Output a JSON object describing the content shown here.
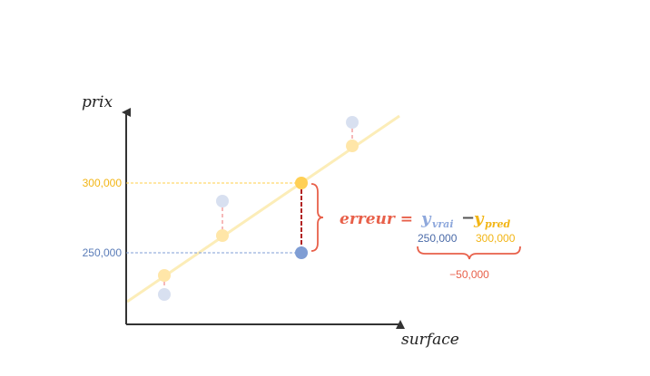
{
  "axes": {
    "ylabel": "prix",
    "xlabel": "surface",
    "yticks": [
      "300,000",
      "250,000"
    ]
  },
  "formula": {
    "lhs": "erreur =",
    "y_true": "y",
    "y_true_sub": "vrai",
    "minus": "−",
    "y_pred": "y",
    "y_pred_sub": "pred",
    "true_value": "250,000",
    "pred_value": "300,000",
    "result": "−50,000"
  },
  "colors": {
    "axis": "#333333",
    "true_point": "#8ea8dc",
    "pred_point": "#ffd055",
    "regression_line": "#fcedb8",
    "error_bar": "#b22222",
    "brace_error": "#e8604a",
    "faded_connector": "#f4a0a0",
    "tick_300": "#f2b515",
    "tick_250": "#5a7cb8"
  }
}
